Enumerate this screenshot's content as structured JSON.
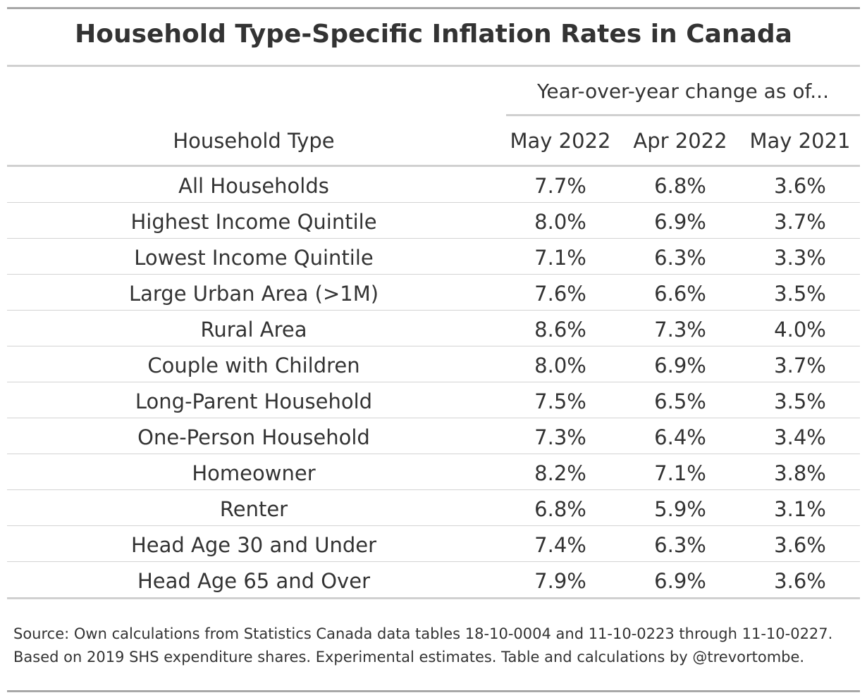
{
  "chart_data": {
    "type": "table",
    "title": "Household Type-Specific Inflation Rates in Canada",
    "spanner": "Year-over-year change as of...",
    "columns": [
      "Household Type",
      "May 2022",
      "Apr 2022",
      "May 2021"
    ],
    "rows": [
      [
        "All Households",
        "7.7%",
        "6.8%",
        "3.6%"
      ],
      [
        "Highest Income Quintile",
        "8.0%",
        "6.9%",
        "3.7%"
      ],
      [
        "Lowest Income Quintile",
        "7.1%",
        "6.3%",
        "3.3%"
      ],
      [
        "Large Urban Area (>1M)",
        "7.6%",
        "6.6%",
        "3.5%"
      ],
      [
        "Rural Area",
        "8.6%",
        "7.3%",
        "4.0%"
      ],
      [
        "Couple with Children",
        "8.0%",
        "6.9%",
        "3.7%"
      ],
      [
        "Long-Parent Household",
        "7.5%",
        "6.5%",
        "3.5%"
      ],
      [
        "One-Person Household",
        "7.3%",
        "6.4%",
        "3.4%"
      ],
      [
        "Homeowner",
        "8.2%",
        "7.1%",
        "3.8%"
      ],
      [
        "Renter",
        "6.8%",
        "5.9%",
        "3.1%"
      ],
      [
        "Head Age 30 and Under",
        "7.4%",
        "6.3%",
        "3.6%"
      ],
      [
        "Head Age 65 and Over",
        "7.9%",
        "6.9%",
        "3.6%"
      ]
    ],
    "notes": [
      "Source: Own calculations from Statistics Canada data tables 18-10-0004 and 11-10-0223 through 11-10-0227.",
      "Based on 2019 SHS expenditure shares. Experimental estimates. Table and calculations by @trevortombe."
    ]
  }
}
